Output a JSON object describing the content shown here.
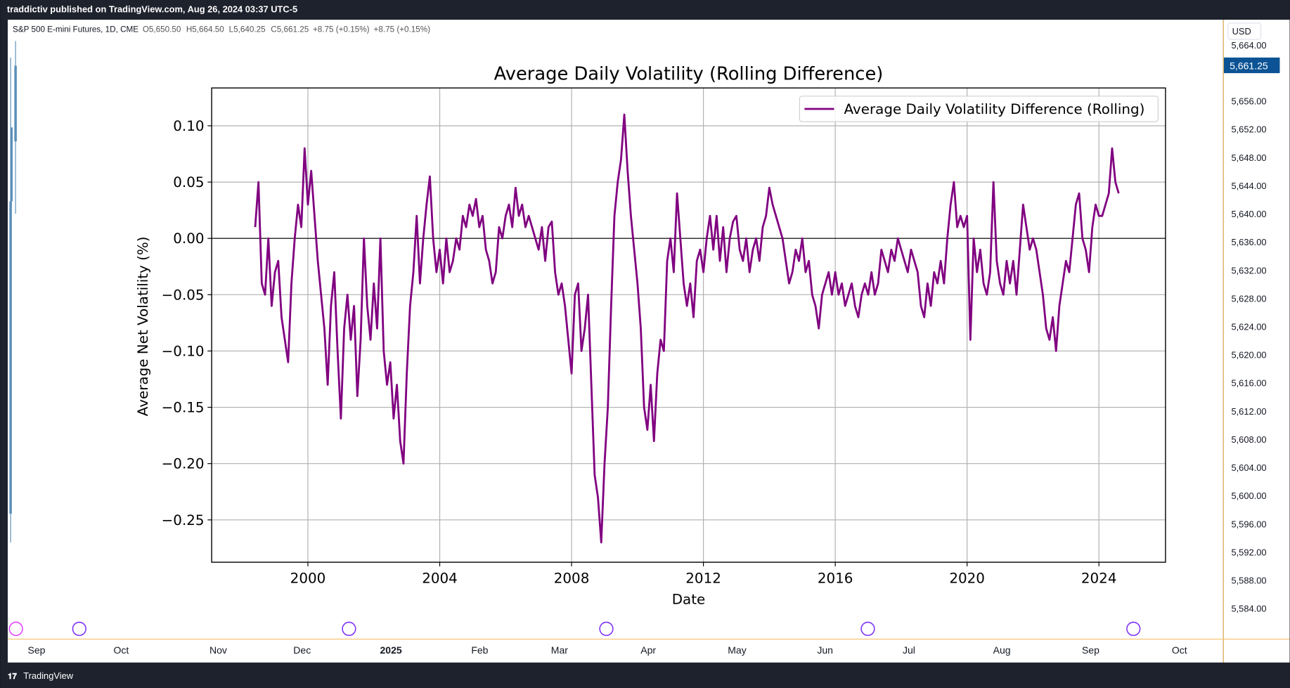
{
  "header": {
    "text": "traddictiv published on TradingView.com, Aug 26, 2024 03:37 UTC-5"
  },
  "symbol_bar": {
    "items": [
      "S&P 500 E-mini Futures, 1D, CME",
      "O5,650.50",
      "H5,664.50",
      "L5,640.25",
      "C5,661.25",
      "+8.75 (+0.15%)",
      "+8.75 (+0.15%)"
    ]
  },
  "price_axis": {
    "currency": "USD",
    "current": "5,661.25",
    "labels": [
      "5,664.00",
      "5,656.00",
      "5,652.00",
      "5,648.00",
      "5,644.00",
      "5,640.00",
      "5,636.00",
      "5,632.00",
      "5,628.00",
      "5,624.00",
      "5,620.00",
      "5,616.00",
      "5,612.00",
      "5,608.00",
      "5,604.00",
      "5,600.00",
      "5,596.00",
      "5,592.00",
      "5,588.00",
      "5,584.00"
    ]
  },
  "time_axis": {
    "labels": [
      "Sep",
      "Oct",
      "Nov",
      "Dec",
      "2025",
      "Feb",
      "Mar",
      "Apr",
      "May",
      "Jun",
      "Jul",
      "Aug",
      "Sep",
      "Oct"
    ]
  },
  "footer": {
    "brand": "TradingView"
  },
  "chart_data": {
    "type": "line",
    "title": "Average Daily Volatility (Rolling Difference)",
    "xlabel": "Date",
    "ylabel": "Average Net Volatility (%)",
    "x": [
      1998.4,
      1998.5,
      1998.6,
      1998.7,
      1998.8,
      1998.9,
      1999.0,
      1999.1,
      1999.2,
      1999.3,
      1999.4,
      1999.5,
      1999.6,
      1999.7,
      1999.8,
      1999.9,
      2000.0,
      2000.1,
      2000.2,
      2000.3,
      2000.4,
      2000.5,
      2000.6,
      2000.7,
      2000.8,
      2000.9,
      2001.0,
      2001.1,
      2001.2,
      2001.3,
      2001.4,
      2001.5,
      2001.6,
      2001.7,
      2001.8,
      2001.9,
      2002.0,
      2002.1,
      2002.2,
      2002.3,
      2002.4,
      2002.5,
      2002.6,
      2002.7,
      2002.8,
      2002.9,
      2003.0,
      2003.1,
      2003.2,
      2003.3,
      2003.4,
      2003.5,
      2003.6,
      2003.7,
      2003.8,
      2003.9,
      2004.0,
      2004.1,
      2004.2,
      2004.3,
      2004.4,
      2004.5,
      2004.6,
      2004.7,
      2004.8,
      2004.9,
      2005.0,
      2005.1,
      2005.2,
      2005.3,
      2005.4,
      2005.5,
      2005.6,
      2005.7,
      2005.8,
      2005.9,
      2006.0,
      2006.1,
      2006.2,
      2006.3,
      2006.4,
      2006.5,
      2006.6,
      2006.7,
      2006.8,
      2006.9,
      2007.0,
      2007.1,
      2007.2,
      2007.3,
      2007.4,
      2007.5,
      2007.6,
      2007.7,
      2007.8,
      2007.9,
      2008.0,
      2008.1,
      2008.2,
      2008.3,
      2008.4,
      2008.5,
      2008.6,
      2008.7,
      2008.8,
      2008.9,
      2009.0,
      2009.1,
      2009.2,
      2009.3,
      2009.4,
      2009.5,
      2009.6,
      2009.7,
      2009.8,
      2009.9,
      2010.0,
      2010.1,
      2010.2,
      2010.3,
      2010.4,
      2010.5,
      2010.6,
      2010.7,
      2010.8,
      2010.9,
      2011.0,
      2011.1,
      2011.2,
      2011.3,
      2011.4,
      2011.5,
      2011.6,
      2011.7,
      2011.8,
      2011.9,
      2012.0,
      2012.1,
      2012.2,
      2012.3,
      2012.4,
      2012.5,
      2012.6,
      2012.7,
      2012.8,
      2012.9,
      2013.0,
      2013.1,
      2013.2,
      2013.3,
      2013.4,
      2013.5,
      2013.6,
      2013.7,
      2013.8,
      2013.9,
      2014.0,
      2014.1,
      2014.2,
      2014.3,
      2014.4,
      2014.5,
      2014.6,
      2014.7,
      2014.8,
      2014.9,
      2015.0,
      2015.1,
      2015.2,
      2015.3,
      2015.4,
      2015.5,
      2015.6,
      2015.7,
      2015.8,
      2015.9,
      2016.0,
      2016.1,
      2016.2,
      2016.3,
      2016.4,
      2016.5,
      2016.6,
      2016.7,
      2016.8,
      2016.9,
      2017.0,
      2017.1,
      2017.2,
      2017.3,
      2017.4,
      2017.5,
      2017.6,
      2017.7,
      2017.8,
      2017.9,
      2018.0,
      2018.1,
      2018.2,
      2018.3,
      2018.4,
      2018.5,
      2018.6,
      2018.7,
      2018.8,
      2018.9,
      2019.0,
      2019.1,
      2019.2,
      2019.3,
      2019.4,
      2019.5,
      2019.6,
      2019.7,
      2019.8,
      2019.9,
      2020.0,
      2020.1,
      2020.2,
      2020.3,
      2020.4,
      2020.5,
      2020.6,
      2020.7,
      2020.8,
      2020.9,
      2021.0,
      2021.1,
      2021.2,
      2021.3,
      2021.4,
      2021.5,
      2021.6,
      2021.7,
      2021.8,
      2021.9,
      2022.0,
      2022.1,
      2022.2,
      2022.3,
      2022.4,
      2022.5,
      2022.6,
      2022.7,
      2022.8,
      2022.9,
      2023.0,
      2023.1,
      2023.2,
      2023.3,
      2023.4,
      2023.5,
      2023.6,
      2023.7,
      2023.8,
      2023.9,
      2024.0,
      2024.1,
      2024.2,
      2024.3,
      2024.4,
      2024.5,
      2024.6
    ],
    "series": [
      {
        "name": "Average Daily Volatility Difference (Rolling)",
        "color": "#800080",
        "values": [
          0.01,
          0.05,
          -0.04,
          -0.05,
          0.0,
          -0.06,
          -0.03,
          -0.02,
          -0.07,
          -0.09,
          -0.11,
          -0.04,
          0.0,
          0.03,
          0.01,
          0.08,
          0.03,
          0.06,
          0.02,
          -0.02,
          -0.05,
          -0.08,
          -0.13,
          -0.06,
          -0.03,
          -0.1,
          -0.16,
          -0.08,
          -0.05,
          -0.09,
          -0.06,
          -0.14,
          -0.09,
          0.0,
          -0.06,
          -0.09,
          -0.04,
          -0.08,
          0.0,
          -0.1,
          -0.13,
          -0.11,
          -0.16,
          -0.13,
          -0.18,
          -0.2,
          -0.12,
          -0.06,
          -0.03,
          0.02,
          -0.04,
          0.0,
          0.03,
          0.055,
          0.0,
          -0.03,
          -0.01,
          -0.04,
          0.0,
          -0.03,
          -0.02,
          0.0,
          -0.01,
          0.02,
          0.01,
          0.03,
          0.02,
          0.035,
          0.01,
          0.02,
          -0.01,
          -0.02,
          -0.04,
          -0.03,
          0.01,
          0.0,
          0.02,
          0.03,
          0.01,
          0.045,
          0.02,
          0.03,
          0.01,
          0.02,
          0.01,
          0.0,
          -0.01,
          0.01,
          -0.02,
          0.01,
          0.015,
          -0.03,
          -0.05,
          -0.04,
          -0.06,
          -0.09,
          -0.12,
          -0.05,
          -0.04,
          -0.1,
          -0.08,
          -0.05,
          -0.13,
          -0.21,
          -0.23,
          -0.27,
          -0.2,
          -0.15,
          -0.06,
          0.02,
          0.05,
          0.07,
          0.11,
          0.06,
          0.02,
          -0.01,
          -0.04,
          -0.08,
          -0.15,
          -0.17,
          -0.13,
          -0.18,
          -0.12,
          -0.09,
          -0.1,
          -0.02,
          0.0,
          -0.03,
          0.04,
          0.0,
          -0.04,
          -0.06,
          -0.04,
          -0.07,
          -0.02,
          -0.01,
          -0.03,
          0.0,
          0.02,
          -0.01,
          0.02,
          -0.02,
          0.01,
          -0.03,
          0.0,
          0.015,
          0.02,
          -0.01,
          -0.02,
          0.0,
          -0.03,
          -0.01,
          0.0,
          -0.02,
          0.01,
          0.02,
          0.045,
          0.03,
          0.02,
          0.01,
          0.0,
          -0.02,
          -0.04,
          -0.03,
          -0.01,
          -0.02,
          0.0,
          -0.03,
          -0.02,
          -0.05,
          -0.06,
          -0.08,
          -0.05,
          -0.04,
          -0.03,
          -0.05,
          -0.03,
          -0.05,
          -0.04,
          -0.06,
          -0.05,
          -0.04,
          -0.06,
          -0.07,
          -0.05,
          -0.04,
          -0.05,
          -0.03,
          -0.05,
          -0.04,
          -0.01,
          -0.02,
          -0.03,
          -0.01,
          -0.02,
          0.0,
          -0.01,
          -0.02,
          -0.03,
          -0.01,
          -0.02,
          -0.03,
          -0.06,
          -0.07,
          -0.04,
          -0.06,
          -0.03,
          -0.04,
          -0.02,
          -0.04,
          0.0,
          0.03,
          0.05,
          0.01,
          0.02,
          0.01,
          0.02,
          -0.09,
          0.0,
          -0.03,
          -0.01,
          -0.04,
          -0.05,
          -0.03,
          0.05,
          -0.02,
          -0.04,
          -0.05,
          -0.02,
          -0.04,
          -0.02,
          -0.05,
          -0.01,
          0.03,
          0.01,
          -0.01,
          0.0,
          -0.01,
          -0.03,
          -0.05,
          -0.08,
          -0.09,
          -0.07,
          -0.1,
          -0.06,
          -0.04,
          -0.02,
          -0.03,
          0.0,
          0.03,
          0.04,
          0.0,
          -0.01,
          -0.03,
          0.01,
          0.03,
          0.02,
          0.02,
          0.03,
          0.04,
          0.08,
          0.05,
          0.04
        ]
      }
    ],
    "xlim": [
      1997.08,
      2026.02
    ],
    "ylim": [
      -0.2876,
      0.1336
    ],
    "xticks": [
      2000,
      2004,
      2008,
      2012,
      2016,
      2020,
      2024
    ],
    "yticks": [
      {
        "value": -0.25,
        "label": "−0.25"
      },
      {
        "value": -0.2,
        "label": "−0.20"
      },
      {
        "value": -0.15,
        "label": "−0.15"
      },
      {
        "value": -0.1,
        "label": "−0.10"
      },
      {
        "value": -0.05,
        "label": "−0.05"
      },
      {
        "value": 0,
        "label": "0.00"
      },
      0.05,
      {
        "value": 0.1,
        "label": "0.10"
      }
    ],
    "axhline": 0,
    "axhline_color": "#000000",
    "grid": true,
    "legend": "upper right"
  }
}
